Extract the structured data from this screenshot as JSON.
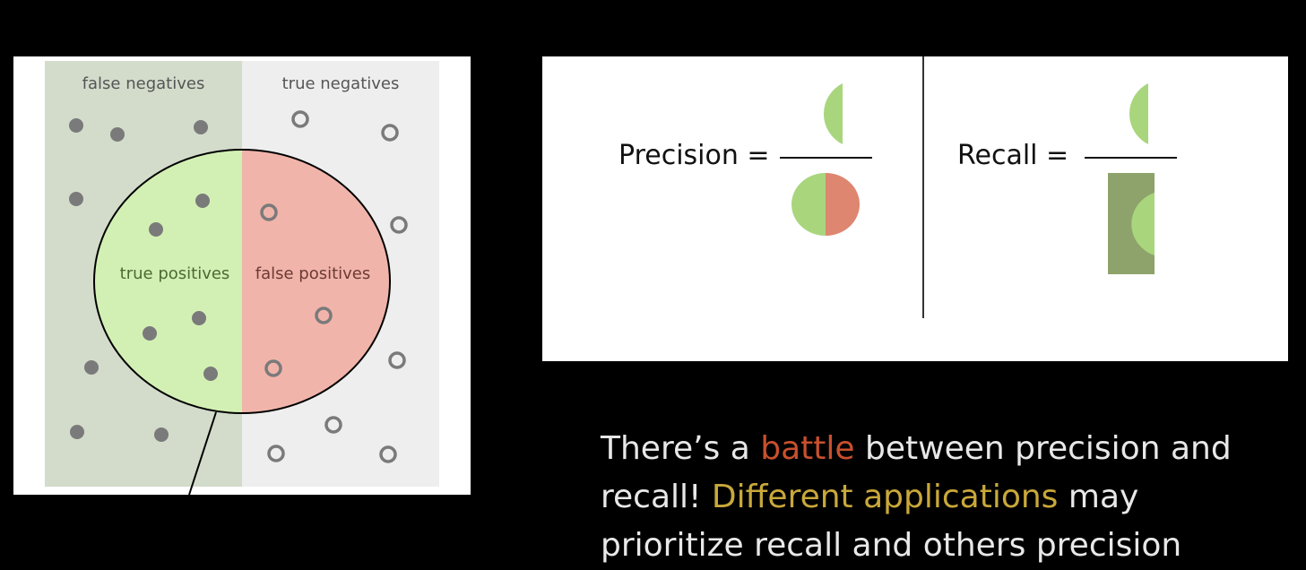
{
  "venn_diagram": {
    "labels": {
      "false_negatives": "false negatives",
      "true_negatives": "true negatives",
      "true_positives": "true positives",
      "false_positives": "false positives"
    },
    "colors": {
      "relevant_region": "#d3dccb",
      "non_relevant_region": "#eeeeee",
      "true_positives_fill": "#d3f0b4",
      "false_positives_fill": "#f1b4aa",
      "dot": "#7a7a7a"
    }
  },
  "formulas": {
    "precision": {
      "label": "Precision ="
    },
    "recall": {
      "label": "Recall ="
    },
    "colors": {
      "green_half": "#a9d67d",
      "red_half": "#de8670",
      "relevant_box": "#8ea36b"
    }
  },
  "caption": {
    "part1": "There’s a ",
    "battle": "battle",
    "part2": " between precision and recall! ",
    "different_applications": "Different applications",
    "part3": " may prioritize recall and others precision"
  }
}
